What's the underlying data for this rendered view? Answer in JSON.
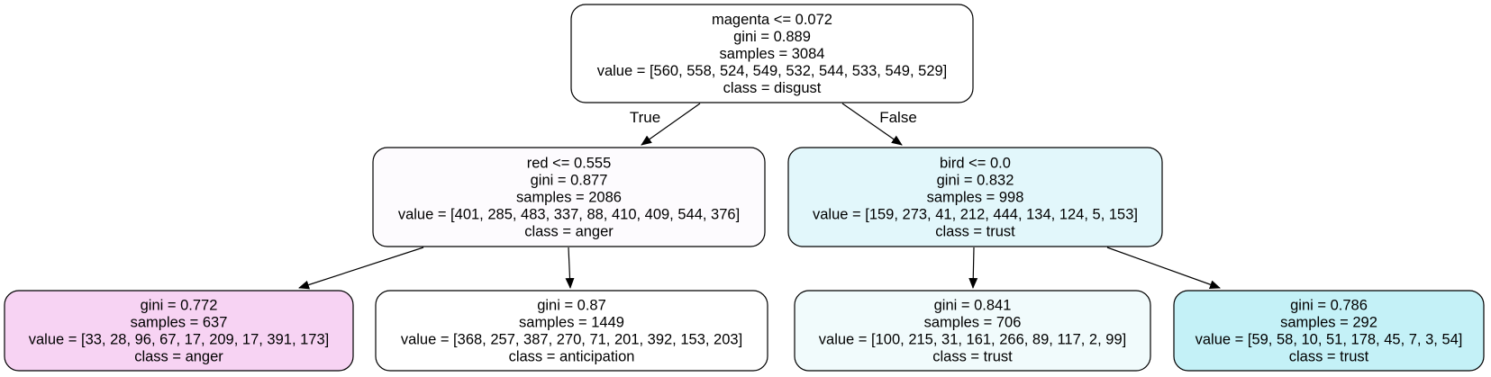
{
  "tree": {
    "nodes": [
      {
        "id": "root",
        "lines": [
          "magenta <= 0.072",
          "gini = 0.889",
          "samples = 3084",
          "value = [560, 558, 524, 549, 532, 544, 533, 549, 529]",
          "class = disgust"
        ],
        "fill": "#ffffff"
      },
      {
        "id": "red-split",
        "lines": [
          "red <= 0.555",
          "gini = 0.877",
          "samples = 2086",
          "value = [401, 285, 483, 337, 88, 410, 409, 544, 376]",
          "class = anger"
        ],
        "fill": "#fdfbfe"
      },
      {
        "id": "bird-split",
        "lines": [
          "bird <= 0.0",
          "gini = 0.832",
          "samples = 998",
          "value = [159, 273, 41, 212, 444, 134, 124, 5, 153]",
          "class = trust"
        ],
        "fill": "#e2f7fb"
      },
      {
        "id": "leaf-anger",
        "lines": [
          "gini = 0.772",
          "samples = 637",
          "value = [33, 28, 96, 67, 17, 209, 17, 391, 173]",
          "class = anger"
        ],
        "fill": "#f7d3f3"
      },
      {
        "id": "leaf-anticipation",
        "lines": [
          "gini = 0.87",
          "samples = 1449",
          "value = [368, 257, 387, 270, 71, 201, 392, 153, 203]",
          "class = anticipation"
        ],
        "fill": "#ffffff"
      },
      {
        "id": "leaf-trust-706",
        "lines": [
          "gini = 0.841",
          "samples = 706",
          "value = [100, 215, 31, 161, 266, 89, 117, 2, 99]",
          "class = trust"
        ],
        "fill": "#f1fbfc"
      },
      {
        "id": "leaf-trust-292",
        "lines": [
          "gini = 0.786",
          "samples = 292",
          "value = [59, 58, 10, 51, 178, 45, 7, 3, 54]",
          "class = trust"
        ],
        "fill": "#c4f1f7"
      }
    ],
    "edges": [
      {
        "from": "root",
        "to": "red-split",
        "label": "True"
      },
      {
        "from": "root",
        "to": "bird-split",
        "label": "False"
      },
      {
        "from": "red-split",
        "to": "leaf-anger",
        "label": ""
      },
      {
        "from": "red-split",
        "to": "leaf-anticipation",
        "label": ""
      },
      {
        "from": "bird-split",
        "to": "leaf-trust-706",
        "label": ""
      },
      {
        "from": "bird-split",
        "to": "leaf-trust-292",
        "label": ""
      }
    ],
    "colors": {
      "stroke": "#000000",
      "edge": "#000000"
    }
  }
}
